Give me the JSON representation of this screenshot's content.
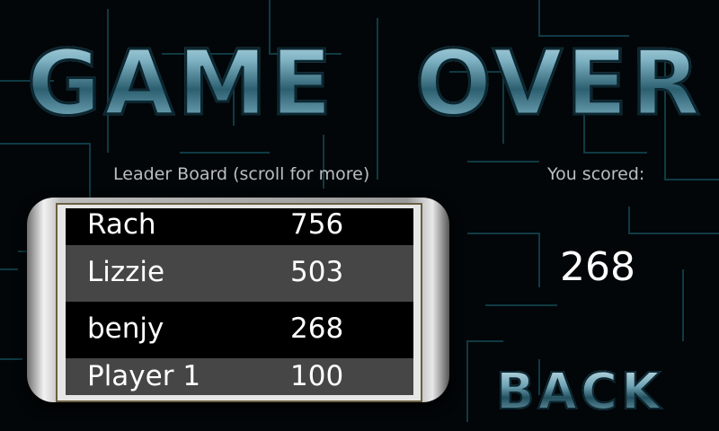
{
  "title": {
    "word1": "GAME",
    "word2": "OVER"
  },
  "leaderboard": {
    "label": "Leader Board (scroll for more)",
    "rows": [
      {
        "name": "Rach",
        "score": "756"
      },
      {
        "name": "Lizzie",
        "score": "503"
      },
      {
        "name": "benjy",
        "score": "268"
      },
      {
        "name": "Player 1",
        "score": "100"
      }
    ]
  },
  "result": {
    "label": "You scored:",
    "score": "268"
  },
  "back_label": "BACK",
  "colors": {
    "background": "#020608",
    "maze_lines": "#0f3a44",
    "title_accent": "#7fb3c4",
    "row_dark": "#000000",
    "row_light": "#464646"
  }
}
